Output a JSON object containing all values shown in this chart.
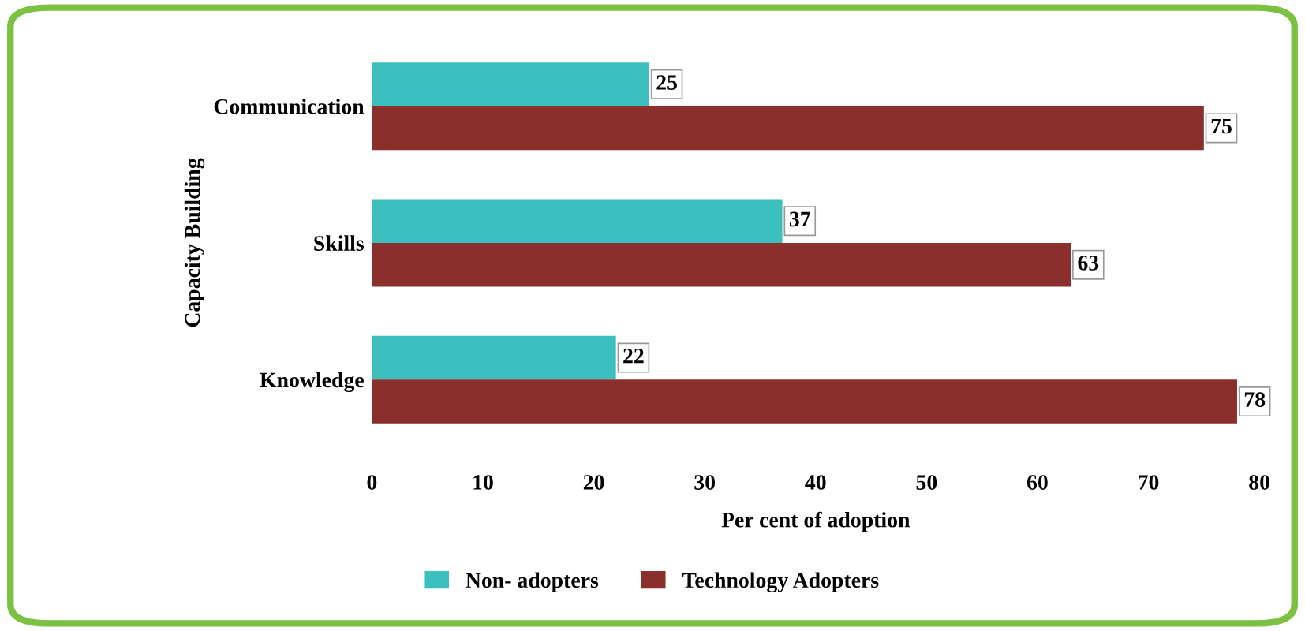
{
  "chart_data": {
    "type": "bar",
    "orientation": "horizontal",
    "xlabel": "Per cent of adoption",
    "ylabel": "Capacity Building",
    "categories": [
      "Communication",
      "Skills",
      "Knowledge"
    ],
    "series": [
      {
        "name": "Non- adopters",
        "color": "#3cbfbf",
        "values": [
          25,
          37,
          22
        ]
      },
      {
        "name": "Technology Adopters",
        "color": "#8b2f2c",
        "values": [
          75,
          63,
          78
        ]
      }
    ],
    "xlim": [
      0,
      80
    ],
    "xticks": [
      0,
      10,
      20,
      30,
      40,
      50,
      60,
      70,
      80
    ],
    "grid": false,
    "legend": "bottom",
    "data_labels": true
  }
}
